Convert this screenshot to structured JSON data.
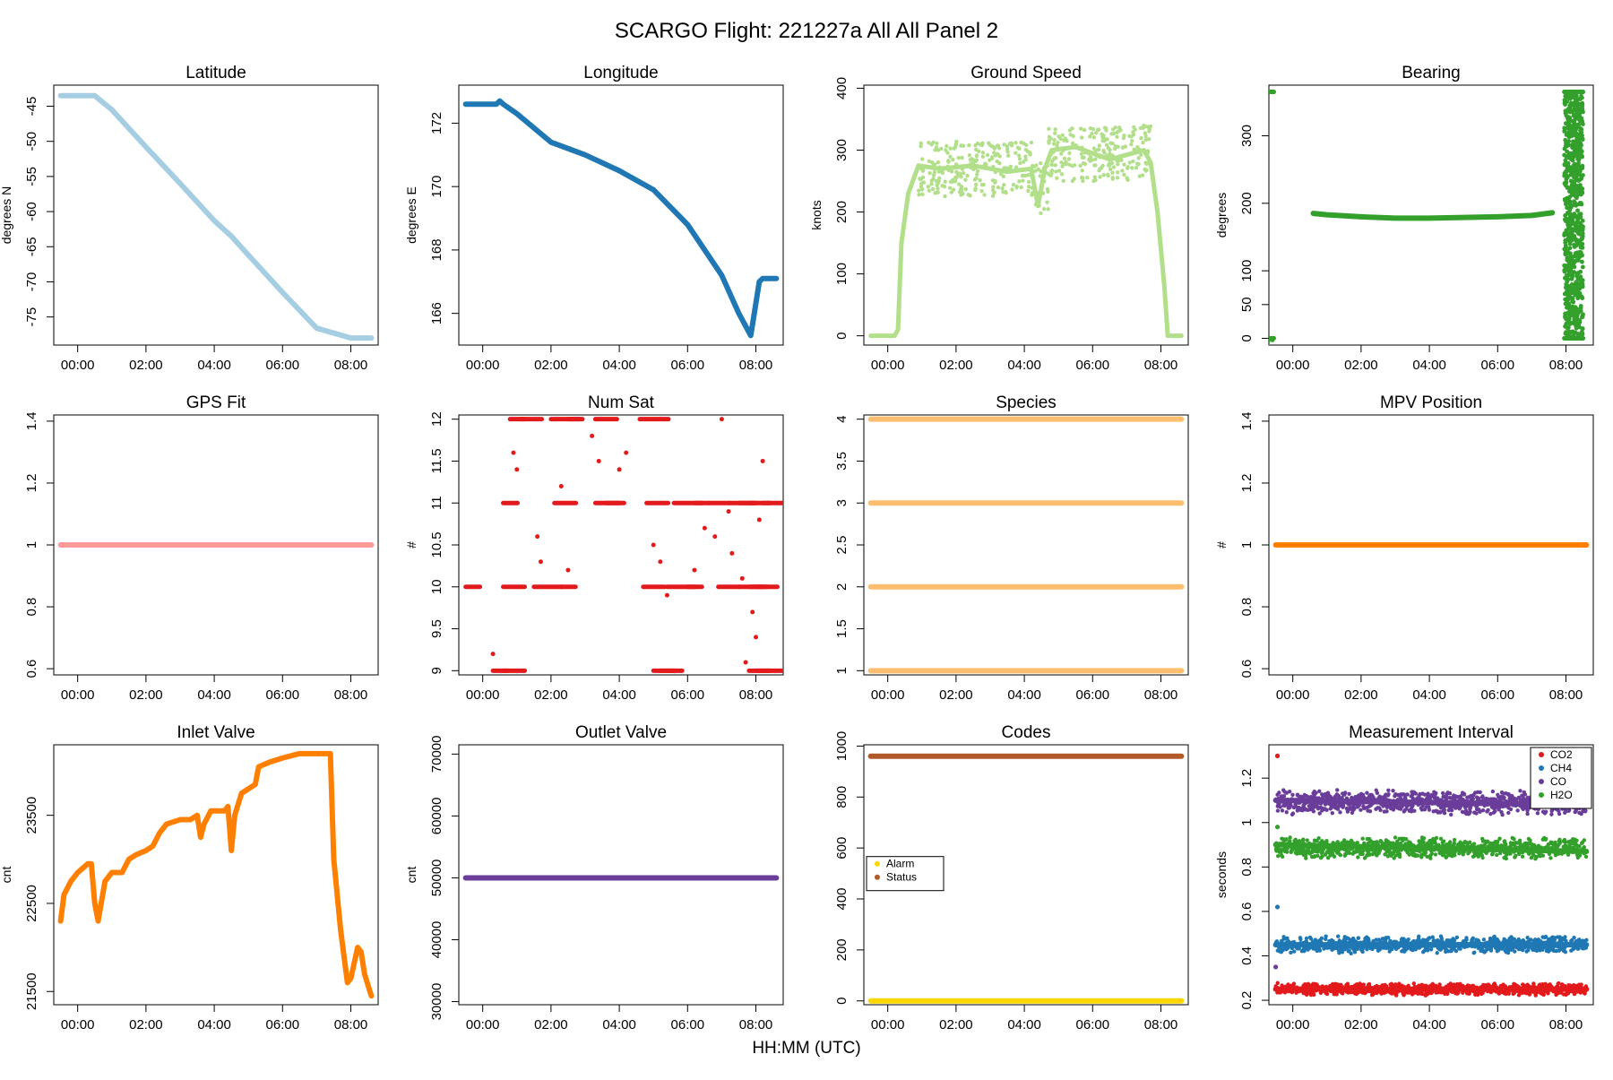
{
  "suptitle": "SCARGO Flight: 221227a  All All  Panel 2",
  "xlabel": "HH:MM (UTC)",
  "time_ticks": [
    "00:00",
    "02:00",
    "04:00",
    "06:00",
    "08:00"
  ],
  "colors": {
    "lat": "#a6cee3",
    "lon": "#1f78b4",
    "speed": "#b2df8a",
    "bearing": "#33a02c",
    "gpsfit": "#fb9a99",
    "numsat": "#e31a1c",
    "species": "#fdbf6f",
    "mpv": "#ff7f00",
    "inlet": "#ff7f00",
    "outlet": "#6a3d9a",
    "alarm": "#ffd700",
    "status": "#b15928",
    "co2": "#e31a1c",
    "ch4": "#1f78b4",
    "co": "#6a3d9a",
    "h2o": "#33a02c"
  },
  "chart_data": [
    {
      "id": "lat",
      "type": "scatter",
      "title": "Latitude",
      "ylabel": "degrees N",
      "xlim": [
        -0.7,
        8.8
      ],
      "ylim": [
        -79,
        -42
      ],
      "yticks": [
        -45,
        -50,
        -55,
        -60,
        -65,
        -70,
        -75
      ],
      "series": [
        {
          "name": "Latitude",
          "color": "lat",
          "x": [
            -0.5,
            0.5,
            1,
            2,
            3,
            4,
            4.5,
            5,
            6,
            7,
            8,
            8.6
          ],
          "y": [
            -43.5,
            -43.5,
            -45.5,
            -50.8,
            -56,
            -61.3,
            -63.5,
            -66.2,
            -71.5,
            -76.6,
            -78,
            -78
          ]
        }
      ]
    },
    {
      "id": "lon",
      "type": "scatter",
      "title": "Longitude",
      "ylabel": "degrees E",
      "xlim": [
        -0.7,
        8.8
      ],
      "ylim": [
        165,
        173.2
      ],
      "yticks": [
        166,
        168,
        170,
        172
      ],
      "series": [
        {
          "name": "Longitude",
          "color": "lon",
          "x": [
            -0.5,
            0.4,
            0.5,
            0.6,
            1,
            2,
            3,
            4,
            5,
            6,
            7,
            7.5,
            7.85,
            8.1,
            8.2,
            8.6
          ],
          "y": [
            172.6,
            172.6,
            172.7,
            172.6,
            172.3,
            171.4,
            171,
            170.5,
            169.9,
            168.8,
            167.2,
            166,
            165.3,
            167,
            167.1,
            167.1
          ]
        }
      ]
    },
    {
      "id": "speed",
      "type": "scatter",
      "title": "Ground Speed",
      "ylabel": "knots",
      "xlim": [
        -0.7,
        8.8
      ],
      "ylim": [
        -15,
        405
      ],
      "yticks": [
        0,
        100,
        200,
        300,
        400
      ],
      "series": [
        {
          "name": "Ground Speed",
          "color": "speed",
          "x": [
            -0.5,
            0.2,
            0.3,
            0.4,
            0.6,
            0.9,
            1.5,
            2.5,
            3.5,
            4.2,
            4.4,
            4.6,
            4.8,
            5.5,
            6.5,
            7.5,
            7.7,
            7.9,
            8.1,
            8.2,
            8.6
          ],
          "y": [
            0,
            0,
            10,
            150,
            230,
            275,
            270,
            275,
            265,
            270,
            210,
            270,
            300,
            305,
            285,
            300,
            280,
            200,
            80,
            0,
            0
          ]
        }
      ]
    },
    {
      "id": "bearing",
      "type": "scatter",
      "title": "Bearing",
      "ylabel": "degrees",
      "xlim": [
        -0.7,
        8.8
      ],
      "ylim": [
        -10,
        375
      ],
      "yticks": [
        0,
        50,
        100,
        200,
        300
      ],
      "series": [
        {
          "name": "Bearing",
          "color": "bearing",
          "x": [
            0.6,
            1,
            2,
            3,
            4,
            5,
            6,
            7,
            7.6
          ],
          "y": [
            185,
            183,
            180,
            178,
            178,
            179,
            180,
            182,
            186
          ]
        }
      ],
      "noise": [
        {
          "color": "bearing",
          "x0": -0.55,
          "x1": 0.55,
          "y0": 0,
          "y1": 365
        },
        {
          "color": "bearing",
          "x0": 7.95,
          "x1": 8.5,
          "y0": 0,
          "y1": 365
        }
      ]
    },
    {
      "id": "gpsfit",
      "type": "scatter",
      "title": "GPS Fit",
      "ylabel": "",
      "xlim": [
        -0.7,
        8.8
      ],
      "ylim": [
        0.58,
        1.42
      ],
      "yticks": [
        0.6,
        0.8,
        1.0,
        1.2,
        1.4
      ],
      "series": [
        {
          "name": "GPS Fit",
          "color": "gpsfit",
          "x": [
            -0.5,
            8.6
          ],
          "y": [
            1,
            1
          ]
        }
      ]
    },
    {
      "id": "numsat",
      "type": "scatter",
      "title": "Num Sat",
      "ylabel": "#",
      "xlim": [
        -0.7,
        8.8
      ],
      "ylim": [
        8.95,
        12.05
      ],
      "yticks": [
        9.0,
        9.5,
        10.0,
        10.5,
        11.0,
        11.5,
        12.0
      ],
      "series": [
        {
          "name": "12",
          "color": "numsat",
          "x": [
            0.8,
            1.1,
            2,
            2.5,
            3.3,
            4.6
          ],
          "y": [
            12,
            12,
            12,
            12,
            12,
            12
          ]
        },
        {
          "name": "11",
          "color": "numsat",
          "x": [
            0.6,
            2.1,
            3.3,
            3.6,
            4.8,
            5.6,
            6.2,
            6.6,
            7.2,
            7.5,
            7.8,
            8.2
          ],
          "y": [
            11,
            11,
            11,
            11,
            11,
            11,
            11,
            11,
            11,
            11,
            11,
            11
          ]
        },
        {
          "name": "10",
          "color": "numsat",
          "x": [
            -0.5,
            0.6,
            1.5,
            2.3,
            4.7,
            5.4,
            6,
            6.9,
            7.5,
            7.8,
            8
          ],
          "y": [
            10,
            10,
            10,
            10,
            10,
            10,
            10,
            10,
            10,
            10,
            10
          ]
        },
        {
          "name": "9",
          "color": "numsat",
          "x": [
            0.3,
            0.6,
            5.0,
            5.2,
            7.8,
            8.0
          ],
          "y": [
            9,
            9,
            9,
            9,
            9,
            9
          ]
        }
      ],
      "scatter_pts": [
        [
          0.9,
          11.6
        ],
        [
          1.0,
          11.4
        ],
        [
          1.6,
          10.6
        ],
        [
          1.7,
          10.3
        ],
        [
          2.3,
          11.2
        ],
        [
          2.5,
          10.2
        ],
        [
          3.2,
          11.8
        ],
        [
          3.4,
          11.5
        ],
        [
          4.0,
          11.4
        ],
        [
          4.2,
          11.6
        ],
        [
          5.0,
          10.5
        ],
        [
          5.2,
          10.3
        ],
        [
          5.4,
          9.9
        ],
        [
          6.2,
          10.2
        ],
        [
          6.5,
          10.7
        ],
        [
          6.8,
          10.6
        ],
        [
          7.0,
          12
        ],
        [
          7.2,
          10.9
        ],
        [
          7.3,
          10.4
        ],
        [
          7.6,
          10.1
        ],
        [
          7.9,
          9.7
        ],
        [
          8.1,
          10.8
        ],
        [
          8.2,
          11.5
        ],
        [
          0.3,
          9.2
        ],
        [
          7.7,
          9.1
        ],
        [
          8.0,
          9.4
        ]
      ]
    },
    {
      "id": "species",
      "type": "scatter",
      "title": "Species",
      "ylabel": "",
      "xlim": [
        -0.7,
        8.8
      ],
      "ylim": [
        0.95,
        4.05
      ],
      "yticks": [
        1.0,
        1.5,
        2.0,
        2.5,
        3.0,
        3.5,
        4.0
      ],
      "series": [
        {
          "name": "1",
          "color": "species",
          "x": [
            -0.5,
            8.6
          ],
          "y": [
            1,
            1
          ]
        },
        {
          "name": "2",
          "color": "species",
          "x": [
            -0.5,
            8.6
          ],
          "y": [
            2,
            2
          ]
        },
        {
          "name": "3",
          "color": "species",
          "x": [
            -0.5,
            8.6
          ],
          "y": [
            3,
            3
          ]
        },
        {
          "name": "4",
          "color": "species",
          "x": [
            -0.5,
            8.6
          ],
          "y": [
            4,
            4
          ]
        }
      ]
    },
    {
      "id": "mpv",
      "type": "scatter",
      "title": "MPV Position",
      "ylabel": "#",
      "xlim": [
        -0.7,
        8.8
      ],
      "ylim": [
        0.58,
        1.42
      ],
      "yticks": [
        0.6,
        0.8,
        1.0,
        1.2,
        1.4
      ],
      "series": [
        {
          "name": "MPV Position",
          "color": "mpv",
          "x": [
            -0.5,
            8.6
          ],
          "y": [
            1,
            1
          ]
        }
      ]
    },
    {
      "id": "inlet",
      "type": "line",
      "title": "Inlet Valve",
      "ylabel": "cnt",
      "xlim": [
        -0.7,
        8.8
      ],
      "ylim": [
        21350,
        24300
      ],
      "yticks": [
        21500,
        22500,
        23500
      ],
      "series": [
        {
          "name": "Inlet Valve",
          "color": "inlet",
          "x": [
            -0.5,
            -0.4,
            -0.2,
            0,
            0.3,
            0.4,
            0.5,
            0.6,
            0.8,
            1,
            1.3,
            1.5,
            1.7,
            2,
            2.2,
            2.4,
            2.6,
            3,
            3.3,
            3.5,
            3.6,
            3.7,
            3.9,
            4.3,
            4.4,
            4.5,
            4.6,
            4.8,
            5.2,
            5.3,
            5.6,
            6,
            6.5,
            7,
            7.4,
            7.5,
            7.7,
            7.9,
            8.0,
            8.2,
            8.3,
            8.4,
            8.6
          ],
          "y": [
            22300,
            22600,
            22750,
            22850,
            22950,
            22950,
            22500,
            22300,
            22750,
            22850,
            22850,
            23000,
            23050,
            23100,
            23150,
            23300,
            23400,
            23450,
            23450,
            23500,
            23250,
            23400,
            23550,
            23550,
            23600,
            23100,
            23500,
            23750,
            23850,
            24050,
            24100,
            24150,
            24200,
            24200,
            24200,
            23000,
            22200,
            21600,
            21650,
            22000,
            21950,
            21700,
            21450
          ]
        }
      ]
    },
    {
      "id": "outlet",
      "type": "scatter",
      "title": "Outlet Valve",
      "ylabel": "cnt",
      "xlim": [
        -0.7,
        8.8
      ],
      "ylim": [
        29500,
        71500
      ],
      "yticks": [
        30000,
        40000,
        50000,
        60000,
        70000
      ],
      "series": [
        {
          "name": "Outlet Valve",
          "color": "outlet",
          "x": [
            -0.5,
            8.6
          ],
          "y": [
            50000,
            50000
          ]
        }
      ]
    },
    {
      "id": "codes",
      "type": "scatter",
      "title": "Codes",
      "ylabel": "",
      "xlim": [
        -0.7,
        8.8
      ],
      "ylim": [
        -15,
        1005
      ],
      "yticks": [
        0,
        200,
        400,
        600,
        800,
        1000
      ],
      "legend": {
        "position": "left-middle",
        "entries": [
          {
            "name": "Alarm",
            "color": "alarm"
          },
          {
            "name": "Status",
            "color": "status"
          }
        ]
      },
      "series": [
        {
          "name": "Alarm",
          "color": "alarm",
          "x": [
            -0.5,
            8.6
          ],
          "y": [
            0,
            0
          ]
        },
        {
          "name": "Status",
          "color": "status",
          "x": [
            -0.5,
            8.6
          ],
          "y": [
            960,
            960
          ]
        }
      ]
    },
    {
      "id": "interval",
      "type": "scatter",
      "title": "Measurement Interval",
      "ylabel": "seconds",
      "xlim": [
        -0.7,
        8.8
      ],
      "ylim": [
        0.18,
        1.35
      ],
      "yticks": [
        0.2,
        0.4,
        0.6,
        0.8,
        1.0,
        1.2
      ],
      "legend": {
        "position": "top-right",
        "entries": [
          {
            "name": "CO2",
            "color": "co2"
          },
          {
            "name": "CH4",
            "color": "ch4"
          },
          {
            "name": "CO",
            "color": "co"
          },
          {
            "name": "H2O",
            "color": "h2o"
          }
        ]
      },
      "series": [
        {
          "name": "CO2",
          "color": "co2",
          "x": [
            -0.5,
            8.6
          ],
          "y": [
            0.25,
            0.25
          ]
        },
        {
          "name": "CH4",
          "color": "ch4",
          "x": [
            -0.5,
            8.6
          ],
          "y": [
            0.45,
            0.45
          ]
        },
        {
          "name": "CO",
          "color": "co",
          "x": [
            -0.5,
            8.6
          ],
          "y": [
            1.1,
            1.08
          ]
        },
        {
          "name": "H2O",
          "color": "h2o",
          "x": [
            -0.5,
            8.6
          ],
          "y": [
            0.9,
            0.87
          ]
        }
      ],
      "bands": [
        {
          "color": "co2",
          "center": 0.25,
          "half": 0.03
        },
        {
          "color": "ch4",
          "center": 0.45,
          "half": 0.04
        },
        {
          "color": "co",
          "center": 1.09,
          "half": 0.06
        },
        {
          "color": "h2o",
          "center": 0.885,
          "half": 0.05
        }
      ],
      "spikes": [
        [
          -0.45,
          1.3
        ],
        [
          -0.45,
          0.62
        ],
        [
          -0.5,
          0.35
        ],
        [
          -0.45,
          0.98
        ]
      ]
    }
  ]
}
